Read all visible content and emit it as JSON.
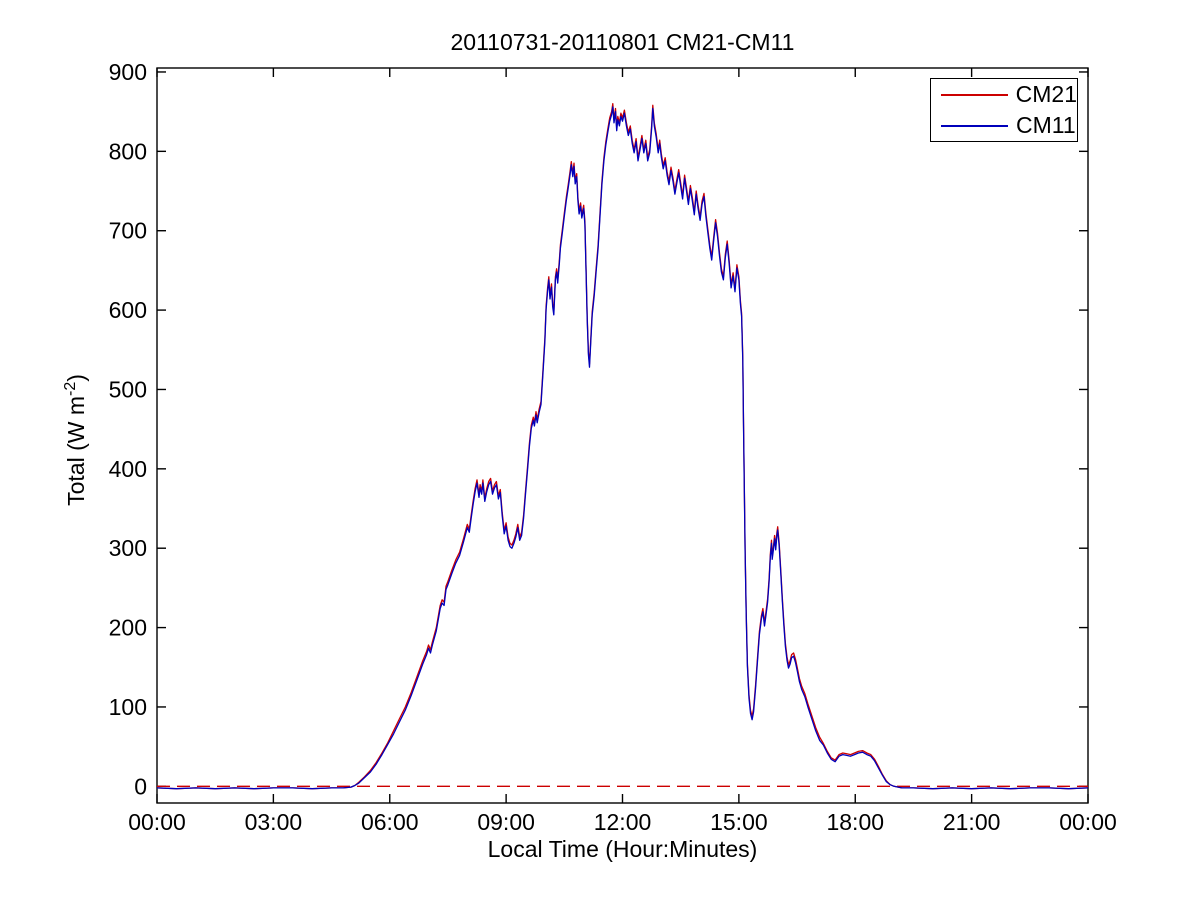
{
  "figure": {
    "background": "#ffffff"
  },
  "chart_data": {
    "type": "line",
    "title": "20110731-20110801 CM21-CM11",
    "xlabel": "Local Time (Hour:Minutes)",
    "ylabel": "Total (W m⁻²)",
    "ylabel_parts": {
      "base": "Total (W m",
      "exponent": "-2",
      "close": ")"
    },
    "x_unit": "hours",
    "xlim": [
      0,
      24
    ],
    "ylim": [
      -21,
      905
    ],
    "x_ticks": [
      0,
      3,
      6,
      9,
      12,
      15,
      18,
      21,
      24
    ],
    "x_tick_labels": [
      "00:00",
      "03:00",
      "06:00",
      "09:00",
      "12:00",
      "15:00",
      "18:00",
      "21:00",
      "00:00"
    ],
    "y_ticks": [
      0,
      100,
      200,
      300,
      400,
      500,
      600,
      700,
      800,
      900
    ],
    "y_tick_labels": [
      "0",
      "100",
      "200",
      "300",
      "400",
      "500",
      "600",
      "700",
      "800",
      "900"
    ],
    "axis_color": "#000000",
    "grid": false,
    "zero_line": {
      "value": 0,
      "color": "#cc0000",
      "style": "dashed"
    },
    "legend_position": "top-right",
    "x_hours": [
      0,
      0.5,
      1,
      1.5,
      2,
      2.5,
      3,
      3.5,
      4,
      4.5,
      4.8,
      5.0,
      5.1,
      5.2,
      5.35,
      5.5,
      5.65,
      5.8,
      5.95,
      6.1,
      6.25,
      6.4,
      6.55,
      6.7,
      6.85,
      6.95,
      7.0,
      7.05,
      7.1,
      7.2,
      7.3,
      7.35,
      7.4,
      7.45,
      7.5,
      7.6,
      7.7,
      7.8,
      7.9,
      8.0,
      8.05,
      8.1,
      8.15,
      8.2,
      8.25,
      8.3,
      8.33,
      8.37,
      8.4,
      8.45,
      8.5,
      8.55,
      8.6,
      8.65,
      8.7,
      8.75,
      8.8,
      8.85,
      8.9,
      8.95,
      9.0,
      9.05,
      9.1,
      9.15,
      9.2,
      9.25,
      9.3,
      9.35,
      9.4,
      9.45,
      9.5,
      9.55,
      9.6,
      9.65,
      9.7,
      9.73,
      9.77,
      9.8,
      9.85,
      9.9,
      9.95,
      10.0,
      10.03,
      10.07,
      10.1,
      10.13,
      10.17,
      10.2,
      10.23,
      10.27,
      10.3,
      10.33,
      10.37,
      10.4,
      10.45,
      10.5,
      10.55,
      10.6,
      10.65,
      10.68,
      10.72,
      10.75,
      10.78,
      10.82,
      10.85,
      10.88,
      10.92,
      10.95,
      11.0,
      11.03,
      11.06,
      11.09,
      11.12,
      11.15,
      11.18,
      11.22,
      11.27,
      11.32,
      11.37,
      11.42,
      11.47,
      11.52,
      11.57,
      11.62,
      11.67,
      11.72,
      11.75,
      11.78,
      11.82,
      11.85,
      11.88,
      11.92,
      11.96,
      12.0,
      12.05,
      12.1,
      12.15,
      12.2,
      12.25,
      12.3,
      12.35,
      12.4,
      12.45,
      12.5,
      12.55,
      12.6,
      12.65,
      12.7,
      12.75,
      12.78,
      12.82,
      12.87,
      12.92,
      12.96,
      13.0,
      13.05,
      13.1,
      13.15,
      13.2,
      13.25,
      13.3,
      13.35,
      13.4,
      13.45,
      13.5,
      13.55,
      13.6,
      13.65,
      13.7,
      13.75,
      13.8,
      13.85,
      13.9,
      13.95,
      14.0,
      14.05,
      14.1,
      14.15,
      14.2,
      14.25,
      14.3,
      14.35,
      14.4,
      14.45,
      14.5,
      14.55,
      14.6,
      14.65,
      14.7,
      14.75,
      14.8,
      14.85,
      14.9,
      14.95,
      15.0,
      15.04,
      15.07,
      15.1,
      15.12,
      15.14,
      15.16,
      15.19,
      15.22,
      15.26,
      15.3,
      15.34,
      15.38,
      15.43,
      15.48,
      15.53,
      15.58,
      15.62,
      15.66,
      15.7,
      15.74,
      15.78,
      15.81,
      15.84,
      15.86,
      15.89,
      15.92,
      15.95,
      15.98,
      16.0,
      16.04,
      16.08,
      16.12,
      16.16,
      16.2,
      16.24,
      16.28,
      16.32,
      16.36,
      16.41,
      16.46,
      16.51,
      16.56,
      16.62,
      16.7,
      16.78,
      16.88,
      16.98,
      17.08,
      17.18,
      17.28,
      17.38,
      17.48,
      17.58,
      17.68,
      17.78,
      17.88,
      17.98,
      18.08,
      18.19,
      18.3,
      18.4,
      18.5,
      18.6,
      18.7,
      18.8,
      18.9,
      19.0,
      19.2,
      19.5,
      20.0,
      20.5,
      21.0,
      21.5,
      22.0,
      22.5,
      23.0,
      23.5,
      24.0
    ],
    "series": [
      {
        "name": "CM21",
        "color": "#cc0000",
        "values": [
          -2,
          -3,
          -2,
          -3,
          -2,
          -3,
          -2,
          -2,
          -3,
          -2,
          -2,
          -1,
          1,
          5,
          12,
          20,
          30,
          42,
          55,
          70,
          85,
          100,
          118,
          138,
          158,
          170,
          178,
          172,
          182,
          200,
          228,
          235,
          232,
          252,
          258,
          272,
          285,
          295,
          312,
          330,
          324,
          342,
          360,
          375,
          386,
          368,
          380,
          372,
          386,
          363,
          375,
          384,
          388,
          372,
          380,
          384,
          366,
          374,
          345,
          322,
          332,
          314,
          306,
          304,
          310,
          318,
          330,
          314,
          320,
          342,
          372,
          402,
          432,
          455,
          465,
          458,
          472,
          462,
          475,
          485,
          525,
          565,
          605,
          628,
          642,
          618,
          633,
          608,
          598,
          642,
          652,
          638,
          662,
          682,
          702,
          722,
          742,
          758,
          775,
          787,
          772,
          785,
          763,
          772,
          742,
          725,
          735,
          720,
          732,
          712,
          655,
          592,
          548,
          532,
          562,
          598,
          622,
          652,
          682,
          722,
          762,
          792,
          812,
          828,
          842,
          850,
          860,
          840,
          854,
          830,
          844,
          836,
          848,
          842,
          852,
          836,
          824,
          832,
          814,
          802,
          816,
          792,
          806,
          820,
          802,
          814,
          792,
          802,
          832,
          858,
          836,
          822,
          802,
          814,
          797,
          782,
          792,
          774,
          762,
          780,
          767,
          750,
          764,
          777,
          760,
          744,
          770,
          754,
          737,
          757,
          742,
          724,
          750,
          732,
          717,
          737,
          747,
          722,
          702,
          682,
          667,
          692,
          714,
          697,
          672,
          652,
          642,
          670,
          687,
          662,
          632,
          647,
          627,
          657,
          642,
          612,
          596,
          540,
          460,
          380,
          300,
          220,
          155,
          115,
          96,
          88,
          98,
          128,
          162,
          195,
          215,
          224,
          206,
          220,
          236,
          262,
          292,
          310,
          290,
          302,
          316,
          302,
          320,
          327,
          306,
          272,
          238,
          206,
          180,
          163,
          153,
          158,
          166,
          168,
          160,
          148,
          136,
          126,
          117,
          104,
          89,
          74,
          62,
          54,
          44,
          36,
          33,
          40,
          42,
          41,
          40,
          42,
          44,
          45,
          42,
          40,
          34,
          25,
          15,
          7,
          2,
          0,
          -2,
          -2,
          -3,
          -2,
          -3,
          -2,
          -3,
          -2,
          -2,
          -3,
          -2
        ]
      },
      {
        "name": "CM11",
        "color": "#0000bb",
        "values": [
          -2,
          -3,
          -2,
          -3,
          -2,
          -3,
          -2,
          -2,
          -3,
          -2,
          -2,
          -1,
          1,
          4,
          11,
          18,
          28,
          40,
          53,
          66,
          81,
          96,
          114,
          134,
          154,
          166,
          174,
          168,
          178,
          196,
          224,
          231,
          228,
          248,
          254,
          268,
          281,
          291,
          308,
          326,
          320,
          338,
          356,
          371,
          382,
          364,
          376,
          368,
          382,
          359,
          371,
          380,
          384,
          368,
          376,
          380,
          362,
          370,
          341,
          318,
          328,
          310,
          302,
          300,
          306,
          314,
          326,
          310,
          316,
          338,
          368,
          398,
          428,
          451,
          461,
          454,
          468,
          458,
          471,
          481,
          521,
          561,
          601,
          624,
          638,
          614,
          629,
          604,
          594,
          638,
          648,
          634,
          658,
          678,
          698,
          718,
          738,
          754,
          771,
          783,
          768,
          781,
          759,
          768,
          738,
          721,
          731,
          716,
          728,
          708,
          651,
          588,
          544,
          528,
          558,
          594,
          618,
          648,
          678,
          718,
          758,
          788,
          808,
          824,
          838,
          846,
          856,
          836,
          850,
          826,
          840,
          832,
          844,
          838,
          848,
          832,
          820,
          828,
          810,
          798,
          812,
          788,
          802,
          816,
          798,
          810,
          788,
          798,
          828,
          854,
          832,
          818,
          798,
          810,
          793,
          778,
          788,
          770,
          758,
          776,
          763,
          746,
          760,
          773,
          756,
          740,
          766,
          750,
          733,
          753,
          738,
          720,
          746,
          728,
          713,
          733,
          743,
          718,
          698,
          678,
          663,
          688,
          710,
          693,
          668,
          648,
          638,
          666,
          683,
          658,
          628,
          643,
          623,
          653,
          638,
          608,
          592,
          536,
          456,
          376,
          296,
          216,
          151,
          111,
          92,
          84,
          94,
          124,
          158,
          191,
          211,
          220,
          202,
          216,
          232,
          258,
          288,
          306,
          286,
          298,
          312,
          298,
          316,
          323,
          302,
          268,
          234,
          202,
          176,
          159,
          149,
          154,
          162,
          164,
          156,
          144,
          132,
          122,
          113,
          100,
          85,
          70,
          58,
          52,
          42,
          34,
          31,
          38,
          40,
          39,
          38,
          40,
          42,
          43,
          40,
          38,
          32,
          23,
          14,
          6,
          2,
          0,
          -2,
          -2,
          -3,
          -2,
          -3,
          -2,
          -3,
          -2,
          -2,
          -3,
          -2
        ]
      }
    ]
  }
}
